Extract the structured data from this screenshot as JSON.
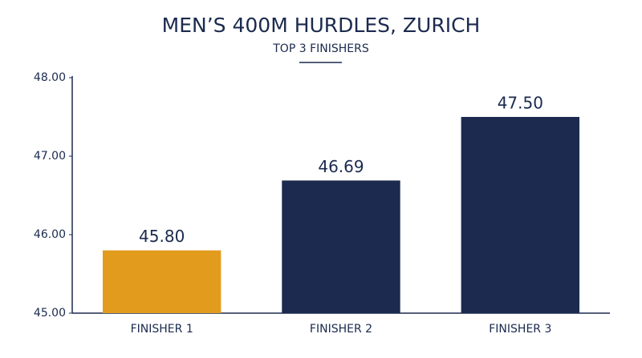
{
  "chart_data": {
    "type": "bar",
    "title": "MEN’S 400M HURDLES, ZURICH",
    "subtitle": "TOP 3 FINISHERS",
    "categories": [
      "FINISHER 1",
      "FINISHER 2",
      "FINISHER 3"
    ],
    "values": [
      45.8,
      46.69,
      47.5
    ],
    "value_labels": [
      "45.80",
      "46.69",
      "47.50"
    ],
    "colors": [
      "#e39b1e",
      "#1b2a4e",
      "#1b2a4e"
    ],
    "ylim": [
      45,
      48
    ],
    "yticks": [
      {
        "value": 45,
        "label": "45.00"
      },
      {
        "value": 46,
        "label": "46.00"
      },
      {
        "value": 47,
        "label": "47.00"
      },
      {
        "value": 48,
        "label": "48.00"
      }
    ],
    "grid": false
  }
}
